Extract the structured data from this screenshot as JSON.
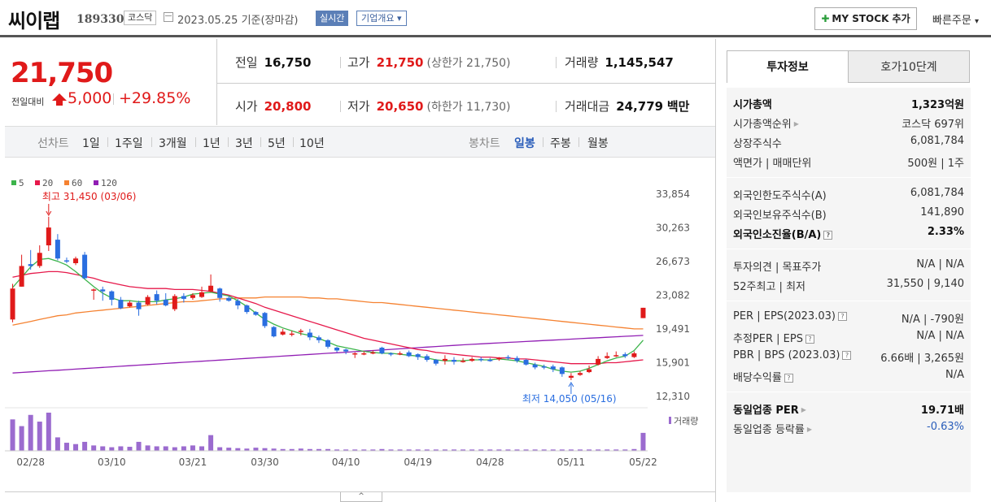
{
  "header": {
    "stock_name": "씨이랩",
    "stock_code": "189330",
    "market": "코스닥",
    "date": "2023.05.25 기준(장마감)",
    "realtime": "실시간",
    "corp_info": "기업개요 ▾",
    "mystock_label": "MY STOCK 추가",
    "quick_order": "빠른주문",
    "quick_caret": "▾"
  },
  "price": {
    "current": "21,750",
    "vs_label": "전일대비",
    "change": "5,000",
    "change_pct": "+29.85%"
  },
  "stats": {
    "prev_close_label": "전일",
    "prev_close": "16,750",
    "open_label": "시가",
    "open": "20,800",
    "high_label": "고가",
    "high": "21,750",
    "upper_limit": "(상한가 21,750)",
    "low_label": "저가",
    "low": "20,650",
    "lower_limit": "(하한가 11,730)",
    "volume_label": "거래량",
    "volume": "1,145,547",
    "amount_label": "거래대금",
    "amount": "24,779",
    "amount_unit": "백만"
  },
  "tabs": {
    "line_chart": "선차트",
    "periods": [
      "1일",
      "1주일",
      "3개월",
      "1년",
      "3년",
      "5년",
      "10년"
    ],
    "candle_chart": "봉차트",
    "candle_types": [
      "일봉",
      "주봉",
      "월봉"
    ],
    "selected_candle": "일봉"
  },
  "chart_data": {
    "type": "candlestick",
    "legend": [
      {
        "name": "5",
        "color": "#3cb44b"
      },
      {
        "name": "20",
        "color": "#e6194b"
      },
      {
        "name": "60",
        "color": "#f58231"
      },
      {
        "name": "120",
        "color": "#911eb4"
      }
    ],
    "yticks": [
      "33,854",
      "30,263",
      "26,673",
      "23,082",
      "19,491",
      "15,901",
      "12,310"
    ],
    "ylim": [
      12310,
      33854
    ],
    "xticks": [
      "02/28",
      "03/10",
      "03/21",
      "03/30",
      "04/10",
      "04/19",
      "04/28",
      "05/11",
      "05/22"
    ],
    "high_annotation": "최고 31,450 (03/06)",
    "low_annotation": "최저 14,050 (05/16)",
    "volume_label": "거래량",
    "candles": [
      [
        20500,
        23800,
        24300,
        20200
      ],
      [
        24000,
        26200,
        27400,
        24000
      ],
      [
        26400,
        26200,
        27900,
        25800
      ],
      [
        26200,
        27600,
        28400,
        26000
      ],
      [
        28400,
        30300,
        31450,
        27800
      ],
      [
        29000,
        27000,
        29600,
        26800
      ],
      [
        26800,
        26700,
        27100,
        26500
      ],
      [
        26500,
        27000,
        27200,
        26300
      ],
      [
        27400,
        24900,
        27700,
        24800
      ],
      [
        23700,
        23700,
        23800,
        22600
      ],
      [
        23700,
        23500,
        24000,
        22500
      ],
      [
        23500,
        22600,
        23600,
        22000
      ],
      [
        22600,
        21700,
        22900,
        21600
      ],
      [
        21900,
        22300,
        22500,
        21800
      ],
      [
        22300,
        21600,
        22500,
        20900
      ],
      [
        22100,
        22900,
        23100,
        22000
      ],
      [
        23200,
        22500,
        23600,
        22100
      ],
      [
        22600,
        22000,
        23300,
        21900
      ],
      [
        21600,
        23000,
        23200,
        21400
      ],
      [
        23000,
        22700,
        23300,
        22300
      ],
      [
        22800,
        23100,
        23300,
        22600
      ],
      [
        22900,
        23400,
        24000,
        22800
      ],
      [
        23500,
        24100,
        25300,
        23400
      ],
      [
        23800,
        22800,
        23900,
        22400
      ],
      [
        22800,
        22500,
        23000,
        22400
      ],
      [
        22500,
        22000,
        22700,
        21600
      ],
      [
        22000,
        21300,
        22100,
        21100
      ],
      [
        21300,
        21000,
        21400,
        20900
      ],
      [
        21200,
        19800,
        21300,
        19600
      ],
      [
        19700,
        18700,
        19800,
        18600
      ],
      [
        18900,
        19200,
        19500,
        18800
      ],
      [
        18900,
        19000,
        19300,
        18700
      ],
      [
        19200,
        19300,
        19500,
        18800
      ],
      [
        19100,
        18600,
        19500,
        18300
      ],
      [
        18600,
        18300,
        18800,
        18000
      ],
      [
        18300,
        17600,
        18400,
        17400
      ],
      [
        17500,
        17200,
        17600,
        17000
      ],
      [
        17300,
        17100,
        17400,
        16800
      ],
      [
        16900,
        16900,
        17000,
        16400
      ],
      [
        16900,
        16900,
        17100,
        16700
      ],
      [
        17000,
        17000,
        17200,
        16800
      ],
      [
        17500,
        16900,
        17600,
        16800
      ],
      [
        16900,
        16800,
        17000,
        16600
      ],
      [
        16800,
        16900,
        17100,
        16700
      ],
      [
        17000,
        16600,
        17200,
        16500
      ],
      [
        16800,
        16500,
        16900,
        16200
      ],
      [
        16600,
        16200,
        16800,
        16000
      ],
      [
        16200,
        15800,
        16300,
        15600
      ],
      [
        16100,
        16300,
        16700,
        15700
      ],
      [
        16200,
        16000,
        16500,
        15700
      ],
      [
        16000,
        16100,
        16400,
        15900
      ],
      [
        16100,
        16300,
        16500,
        16000
      ],
      [
        16300,
        16200,
        16500,
        16000
      ],
      [
        16200,
        16100,
        16400,
        16000
      ],
      [
        16300,
        16400,
        16500,
        16100
      ],
      [
        16500,
        16400,
        16700,
        16200
      ],
      [
        16400,
        16100,
        16600,
        15900
      ],
      [
        16200,
        15700,
        16300,
        15600
      ],
      [
        15700,
        15400,
        15900,
        15200
      ],
      [
        15500,
        15400,
        15700,
        15200
      ],
      [
        15500,
        15200,
        15700,
        14900
      ],
      [
        15400,
        14700,
        15500,
        14400
      ],
      [
        14300,
        14500,
        14800,
        14050
      ],
      [
        14600,
        14800,
        15000,
        14500
      ],
      [
        14900,
        15200,
        15600,
        14800
      ],
      [
        15700,
        16300,
        16600,
        15600
      ],
      [
        16400,
        16600,
        17000,
        16300
      ],
      [
        16700,
        16700,
        17100,
        16500
      ],
      [
        16800,
        16600,
        17000,
        16400
      ],
      [
        16500,
        16900,
        17100,
        16400
      ],
      [
        20650,
        21750,
        21750,
        20650
      ]
    ],
    "ma5": [
      23900,
      25000,
      26100,
      26900,
      27000,
      26700,
      26300,
      25600,
      24800,
      24000,
      23300,
      22800,
      22500,
      22500,
      22400,
      22400,
      22400,
      22600,
      22700,
      22900,
      23200,
      23300,
      23400,
      23200,
      23000,
      22500,
      21900,
      21200,
      20500,
      20000,
      19600,
      19300,
      19000,
      18800,
      18500,
      18100,
      17700,
      17500,
      17300,
      17100,
      17000,
      16900,
      16900,
      16800,
      16700,
      16600,
      16400,
      16200,
      16100,
      16100,
      16100,
      16200,
      16200,
      16200,
      16300,
      16200,
      16100,
      15900,
      15700,
      15500,
      15200,
      15000,
      14900,
      15000,
      15300,
      15700,
      16100,
      16400,
      16600,
      17200,
      18300
    ],
    "ma20": [
      25000,
      25200,
      25400,
      25500,
      25600,
      25600,
      25500,
      25300,
      25100,
      24900,
      24600,
      24400,
      24200,
      24000,
      23900,
      23800,
      23800,
      23800,
      23700,
      23700,
      23700,
      23600,
      23500,
      23300,
      23100,
      22800,
      22500,
      22200,
      21800,
      21500,
      21200,
      20900,
      20600,
      20300,
      20000,
      19700,
      19400,
      19100,
      18800,
      18500,
      18300,
      18100,
      17900,
      17700,
      17500,
      17300,
      17200,
      17000,
      16900,
      16800,
      16700,
      16600,
      16500,
      16500,
      16400,
      16400,
      16300,
      16300,
      16200,
      16100,
      16000,
      15900,
      15800,
      15800,
      15800,
      15800,
      15900,
      15900,
      16000,
      16100,
      16200
    ],
    "ma60": [
      19900,
      20100,
      20300,
      20500,
      20700,
      20900,
      21000,
      21200,
      21300,
      21400,
      21500,
      21600,
      21700,
      21800,
      21900,
      22000,
      22100,
      22200,
      22300,
      22400,
      22400,
      22500,
      22600,
      22700,
      22700,
      22800,
      22800,
      22800,
      22900,
      22900,
      22900,
      22900,
      22900,
      22800,
      22800,
      22700,
      22700,
      22600,
      22500,
      22400,
      22300,
      22300,
      22200,
      22100,
      22000,
      21900,
      21800,
      21700,
      21600,
      21500,
      21400,
      21300,
      21200,
      21100,
      21000,
      20900,
      20800,
      20700,
      20600,
      20500,
      20400,
      20300,
      20200,
      20100,
      20000,
      19900,
      19800,
      19700,
      19600,
      19500,
      19500
    ],
    "ma120": [
      14800,
      14860,
      14920,
      14980,
      15040,
      15100,
      15160,
      15220,
      15280,
      15340,
      15400,
      15460,
      15520,
      15580,
      15640,
      15700,
      15760,
      15820,
      15880,
      15940,
      16000,
      16060,
      16120,
      16180,
      16240,
      16300,
      16360,
      16420,
      16480,
      16540,
      16600,
      16660,
      16720,
      16780,
      16840,
      16900,
      16960,
      17020,
      17080,
      17140,
      17200,
      17260,
      17320,
      17380,
      17440,
      17500,
      17560,
      17620,
      17680,
      17740,
      17800,
      17860,
      17910,
      17960,
      18010,
      18060,
      18110,
      18160,
      18210,
      18260,
      18310,
      18360,
      18410,
      18460,
      18510,
      18560,
      18610,
      18660,
      18710,
      18760,
      18810
    ],
    "volume": [
      0.7,
      0.55,
      0.8,
      0.65,
      0.85,
      0.3,
      0.18,
      0.15,
      0.2,
      0.12,
      0.1,
      0.08,
      0.1,
      0.09,
      0.2,
      0.12,
      0.1,
      0.1,
      0.08,
      0.1,
      0.12,
      0.1,
      0.35,
      0.08,
      0.07,
      0.06,
      0.05,
      0.07,
      0.06,
      0.05,
      0.04,
      0.04,
      0.05,
      0.04,
      0.04,
      0.04,
      0.03,
      0.03,
      0.03,
      0.03,
      0.03,
      0.04,
      0.03,
      0.03,
      0.03,
      0.03,
      0.03,
      0.03,
      0.03,
      0.03,
      0.03,
      0.03,
      0.03,
      0.03,
      0.03,
      0.03,
      0.03,
      0.03,
      0.03,
      0.03,
      0.03,
      0.03,
      0.03,
      0.03,
      0.03,
      0.03,
      0.03,
      0.03,
      0.03,
      0.04,
      0.4
    ]
  },
  "invest": {
    "tab1": "투자정보",
    "tab2": "호가10단계",
    "rows": [
      {
        "k": "시가총액",
        "v": "1,323억원",
        "bold": true
      },
      {
        "k": "시가총액순위",
        "v": "코스닥 697위",
        "caret": true
      },
      {
        "k": "상장주식수",
        "v": "6,081,784"
      },
      {
        "k": "액면가 | 매매단위",
        "v": "500원 | 1주"
      },
      {
        "k": "외국인한도주식수(A)",
        "v": "6,081,784"
      },
      {
        "k": "외국인보유주식수(B)",
        "v": "141,890"
      },
      {
        "k": "외국인소진율(B/A)",
        "v": "2.33%",
        "bold": true,
        "help": true
      },
      {
        "k": "투자의견 | 목표주가",
        "v": "N/A | N/A"
      },
      {
        "k": "52주최고 | 최저",
        "v": "31,550 | 9,140"
      },
      {
        "k": "PER | EPS(2023.03)",
        "v": "N/A | -790원",
        "help": true
      },
      {
        "k": "추정PER | EPS",
        "v": "N/A | N/A",
        "help": true
      },
      {
        "k": "PBR | BPS (2023.03)",
        "v": "6.66배 | 3,265원",
        "help": true
      },
      {
        "k": "배당수익률",
        "v": "N/A",
        "help": true
      },
      {
        "k": "동일업종 PER",
        "v": "19.71배",
        "bold": true,
        "caret": true
      },
      {
        "k": "동일업종 등락률",
        "v": "-0.63%",
        "blue": true,
        "caret": true
      }
    ],
    "help_glyph": "?",
    "caret_glyph": "▶"
  },
  "grip_glyph": "^"
}
